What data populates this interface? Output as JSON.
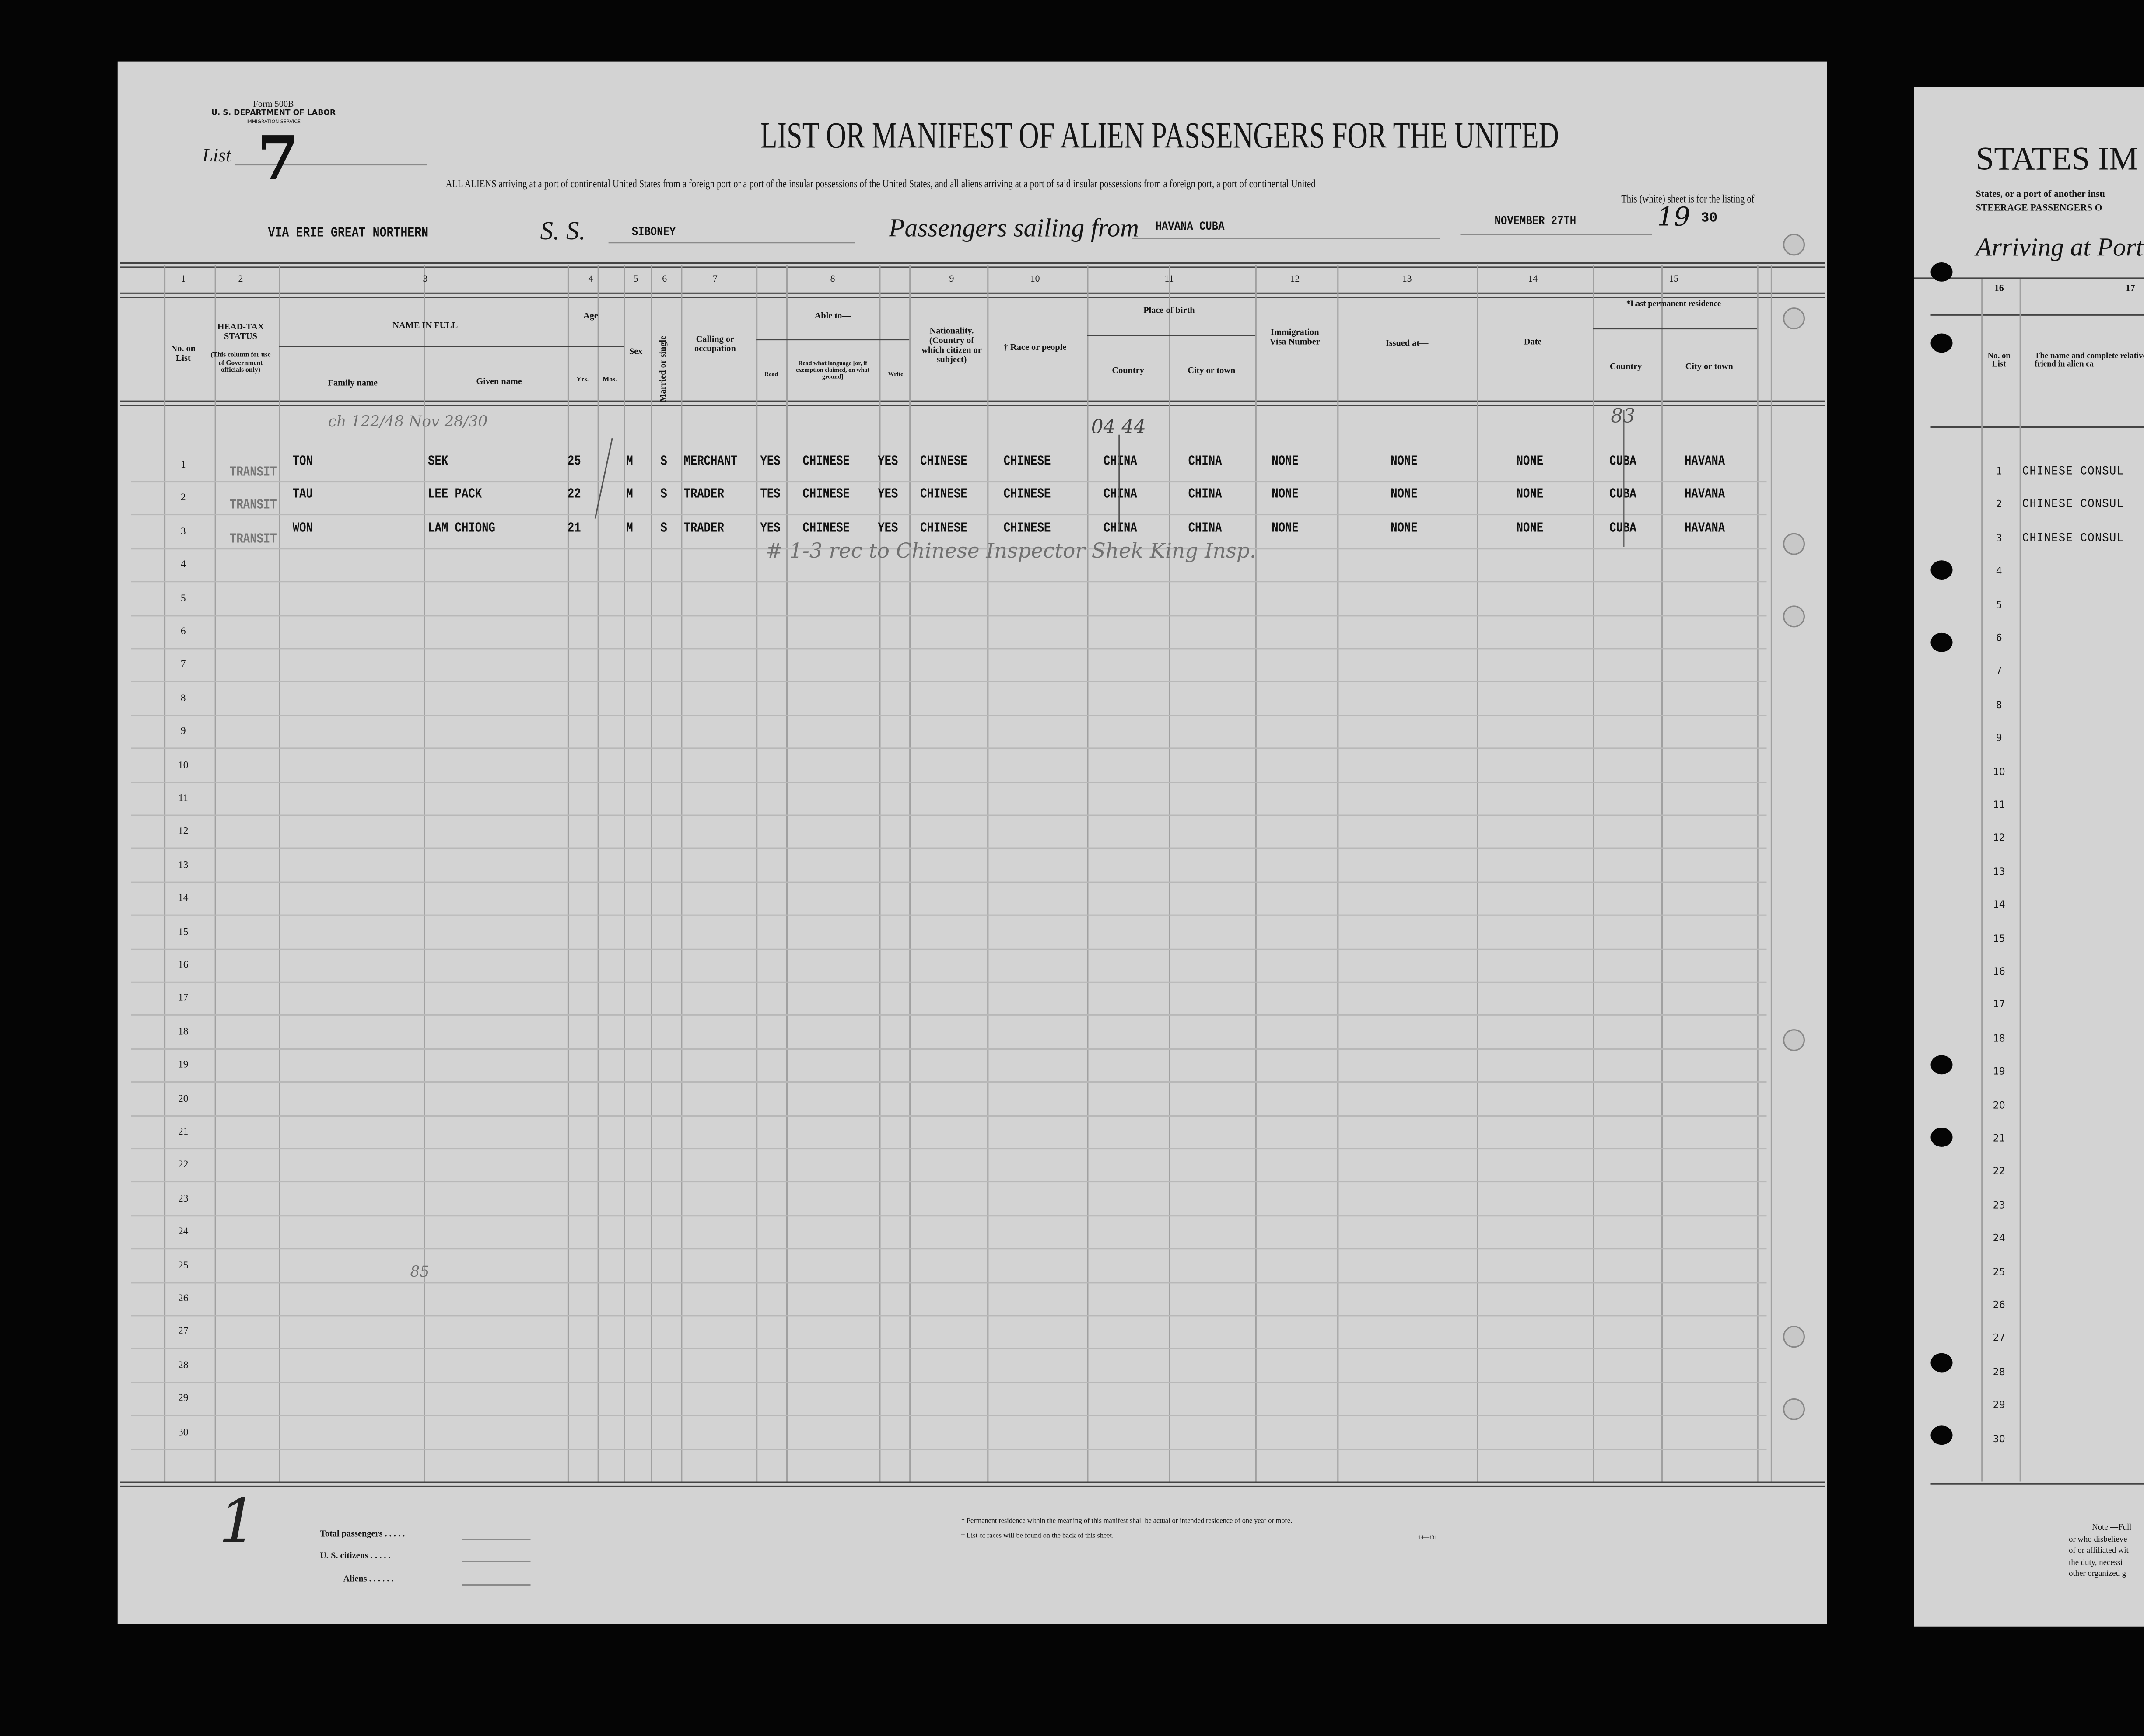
{
  "form": {
    "form_number": "Form 500B",
    "department": "U. S. DEPARTMENT OF LABOR",
    "service": "IMMIGRATION SERVICE",
    "list_label": "List",
    "list_number": "7"
  },
  "title": "LIST OR MANIFEST OF ALIEN PASSENGERS FOR THE UNITED",
  "subtitle_line1": "ALL ALIENS arriving at a port of continental United States from a foreign port or a port of the insular possessions of the United States, and all aliens arriving at a port of said insular possessions from a foreign port, a port of continental United",
  "subtitle_line2": "This (white) sheet is for the listing of",
  "voyage": {
    "route": "VIA ERIE GREAT NORTHERN",
    "ss_label": "S. S.",
    "ship": "SIBONEY",
    "sailing_label": "Passengers sailing from",
    "port": "HAVANA CUBA",
    "date": "NOVEMBER 27TH",
    "year_prefix": "19",
    "year_suffix": "30"
  },
  "col_numbers": [
    "1",
    "2",
    "3",
    "4",
    "5",
    "6",
    "7",
    "8",
    "9",
    "10",
    "11",
    "12",
    "13",
    "14",
    "15"
  ],
  "headers": {
    "no_on_list": "No. on List",
    "head_tax": "HEAD-TAX STATUS",
    "head_tax_note": "(This column for use of Government officials only)",
    "name_in_full": "NAME IN FULL",
    "family_name": "Family name",
    "given_name": "Given name",
    "age": "Age",
    "yrs": "Yrs.",
    "mos": "Mos.",
    "sex": "Sex",
    "married": "Married or single",
    "calling": "Calling or occupation",
    "able_to": "Able to—",
    "read": "Read",
    "read_lang": "Read what language [or, if exemption claimed, on what ground]",
    "write": "Write",
    "nationality": "Nationality. (Country of which citizen or subject)",
    "race": "† Race or people",
    "place_of_birth": "Place of birth",
    "birth_country": "Country",
    "birth_city": "City or town",
    "visa": "Immigration Visa Number",
    "issued_at": "Issued at—",
    "date": "Date",
    "last_residence": "*Last permanent residence",
    "res_country": "Country",
    "res_city": "City or town"
  },
  "row_numbers": [
    "1",
    "2",
    "3",
    "4",
    "5",
    "6",
    "7",
    "8",
    "9",
    "10",
    "11",
    "12",
    "13",
    "14",
    "15",
    "16",
    "17",
    "18",
    "19",
    "20",
    "21",
    "22",
    "23",
    "24",
    "25",
    "26",
    "27",
    "28",
    "29",
    "30"
  ],
  "rows": [
    {
      "head_tax": "TRANSIT",
      "family": "TON",
      "given": "SEK",
      "yrs": "25",
      "sex": "M",
      "married": "S",
      "calling": "MERCHANT",
      "read": "YES",
      "language": "CHINESE",
      "write": "YES",
      "nationality": "CHINESE",
      "race": "CHINESE",
      "birth_country": "CHINA",
      "birth_city": "CHINA",
      "visa": "NONE",
      "issued_at": "NONE",
      "date": "NONE",
      "res_country": "CUBA",
      "res_city": "HAVANA"
    },
    {
      "head_tax": "TRANSIT",
      "family": "TAU",
      "given": "LEE PACK",
      "yrs": "22",
      "sex": "M",
      "married": "S",
      "calling": "TRADER",
      "read": "TES",
      "language": "CHINESE",
      "write": "YES",
      "nationality": "CHINESE",
      "race": "CHINESE",
      "birth_country": "CHINA",
      "birth_city": "CHINA",
      "visa": "NONE",
      "issued_at": "NONE",
      "date": "NONE",
      "res_country": "CUBA",
      "res_city": "HAVANA"
    },
    {
      "head_tax": "TRANSIT",
      "family": "WON",
      "given": "LAM CHIONG",
      "yrs": "21",
      "sex": "M",
      "married": "S",
      "calling": "TRADER",
      "read": "YES",
      "language": "CHINESE",
      "write": "YES",
      "nationality": "CHINESE",
      "race": "CHINESE",
      "birth_country": "CHINA",
      "birth_city": "CHINA",
      "visa": "NONE",
      "issued_at": "NONE",
      "date": "NONE",
      "res_country": "CUBA",
      "res_city": "HAVANA"
    }
  ],
  "annotations": {
    "top_note": "ch 122/48 Nov 28/30",
    "code_a": "04 44",
    "code_b": "83",
    "remark": "# 1-3 rec to Chinese Inspector Shek King Insp.",
    "row25_mark": "85",
    "footer_mark": "1"
  },
  "footer": {
    "total_passengers": "Total passengers . . . . .",
    "us_citizens": "U. S. citizens . . . . .",
    "aliens": "Aliens . . . . . .",
    "note_residence": "* Permanent residence within the meaning of this manifest shall be actual or intended residence of one year or more.",
    "note_races": "† List of races will be found on the back of this sheet.",
    "form_code": "14—431"
  },
  "right_page": {
    "title": "STATES IM",
    "sub1": "States, or a port of another insu",
    "sub2": "STEERAGE PASSENGERS O",
    "arriving": "Arriving at Port",
    "col16": "16",
    "col17": "17",
    "no_on_list": "No. on List",
    "relative_header": "The name and complete relative or friend in alien ca",
    "relatives": [
      "CHINESE CONSUL",
      "CHINESE CONSUL",
      "CHINESE CONSUL"
    ],
    "note_lines": [
      "Note.—Full",
      "or who disbelieve",
      "of or affiliated wit",
      "the duty, necessi",
      "other organized g"
    ]
  }
}
